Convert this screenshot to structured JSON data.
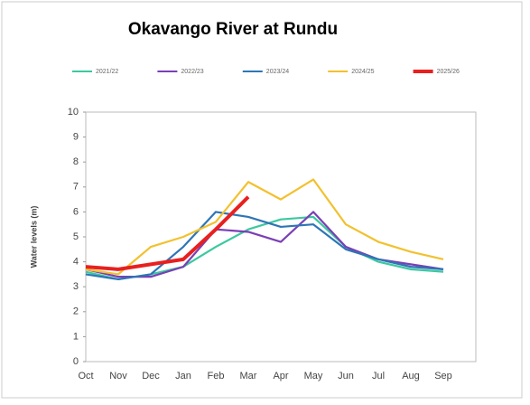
{
  "chart_data": {
    "type": "line",
    "title": "Okavango River at Rundu",
    "y_label": "Water levels (m)",
    "categories": [
      "Oct",
      "Nov",
      "Dec",
      "Jan",
      "Feb",
      "Mar",
      "Apr",
      "May",
      "Jun",
      "Jul",
      "Aug",
      "Sep"
    ],
    "series": [
      {
        "name": "2021/22",
        "color": "#3cc8a0",
        "values": [
          3.6,
          3.3,
          3.5,
          3.8,
          4.6,
          5.3,
          5.7,
          5.8,
          4.6,
          4.0,
          3.7,
          3.6
        ]
      },
      {
        "name": "2022/23",
        "color": "#7b3fb5",
        "values": [
          3.7,
          3.4,
          3.4,
          3.8,
          5.3,
          5.2,
          4.8,
          6.0,
          4.6,
          4.1,
          3.9,
          3.7
        ]
      },
      {
        "name": "2023/24",
        "color": "#2e75b6",
        "values": [
          3.5,
          3.3,
          3.5,
          4.6,
          6.0,
          5.8,
          5.4,
          5.5,
          4.5,
          4.1,
          3.8,
          3.7
        ]
      },
      {
        "name": "2024/25",
        "color": "#f2c12e",
        "values": [
          3.7,
          3.5,
          4.6,
          5.0,
          5.6,
          7.2,
          6.5,
          7.3,
          5.5,
          4.8,
          4.4,
          4.1
        ]
      },
      {
        "name": "2025/26",
        "color": "#e82020",
        "values": [
          3.8,
          3.7,
          3.9,
          4.1,
          5.3,
          6.6,
          null,
          null,
          null,
          null,
          null,
          null
        ]
      }
    ],
    "ylim": [
      0,
      10
    ],
    "yticks": [
      0,
      1,
      2,
      3,
      4,
      5,
      6,
      7,
      8,
      9,
      10
    ],
    "grid": false
  }
}
